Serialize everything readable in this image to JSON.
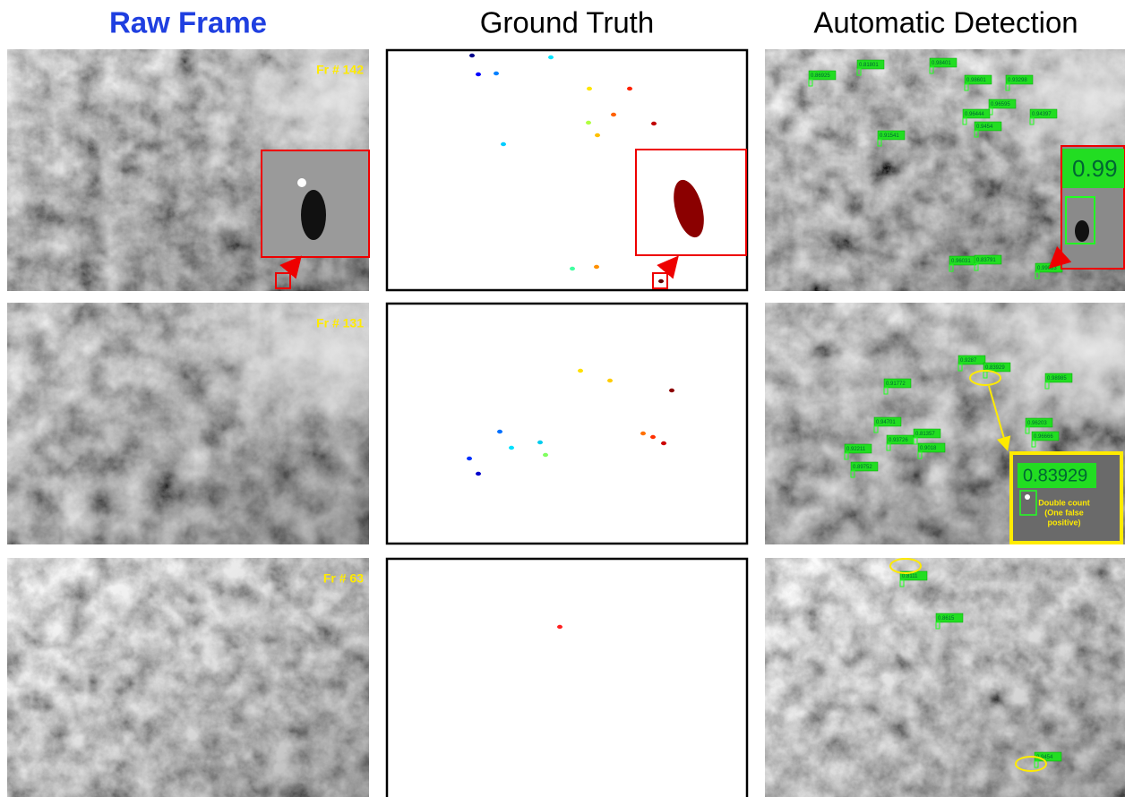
{
  "headers": [
    "Raw Frame",
    "Ground Truth",
    "Automatic Detection"
  ],
  "rows": [
    {
      "frame": "Fr # 142",
      "detections": [
        "0.86925",
        "0.81801",
        "0.98401",
        "0.98601",
        "0.93298",
        "0.96595",
        "0.96444",
        "0.94397",
        "0.9454",
        "0.91541",
        "0.96031",
        "0.83791",
        "0.99083"
      ],
      "zoom_label": "0.99"
    },
    {
      "frame": "Fr # 131",
      "detections": [
        "0.9287",
        "0.83929",
        "0.91772",
        "0.98985",
        "0.96203",
        "0.96666",
        "0.94701",
        "0.93726",
        "0.81357",
        "0.9018",
        "0.92211",
        "0.89752"
      ],
      "zoom_label": "0.83929",
      "zoom_note": [
        "Double count",
        "(One false",
        "positive)"
      ]
    },
    {
      "frame": "Fr # 63",
      "detections": [
        "0.8111",
        "0.8615",
        "0.9454"
      ]
    }
  ]
}
